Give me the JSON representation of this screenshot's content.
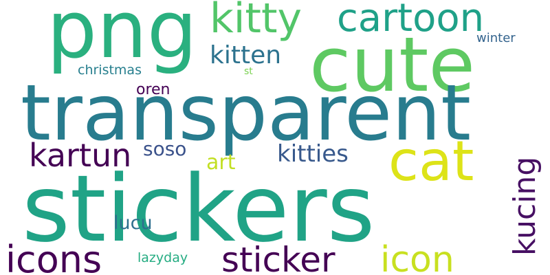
{
  "words": [
    {
      "text": "png",
      "color": "#2ab07f"
    },
    {
      "text": "kitty",
      "color": "#52c569"
    },
    {
      "text": "cartoon",
      "color": "#1fa188"
    },
    {
      "text": "cute",
      "color": "#5ec962"
    },
    {
      "text": "transparent",
      "color": "#287c8e"
    },
    {
      "text": "kitten",
      "color": "#2c728e"
    },
    {
      "text": "winter",
      "color": "#33638d"
    },
    {
      "text": "christmas",
      "color": "#277f8e"
    },
    {
      "text": "st",
      "color": "#7ad151"
    },
    {
      "text": "oren",
      "color": "#440154"
    },
    {
      "text": "kartun",
      "color": "#440154"
    },
    {
      "text": "soso",
      "color": "#3b528b"
    },
    {
      "text": "art",
      "color": "#c2df23"
    },
    {
      "text": "kitties",
      "color": "#38598c"
    },
    {
      "text": "cat",
      "color": "#dde318"
    },
    {
      "text": "kucing",
      "color": "#471063"
    },
    {
      "text": "stickers",
      "color": "#20a386"
    },
    {
      "text": "lucu",
      "color": "#2e6f8e"
    },
    {
      "text": "icons",
      "color": "#440154"
    },
    {
      "text": "sticker",
      "color": "#440154"
    },
    {
      "text": "icon",
      "color": "#c8e020"
    },
    {
      "text": "lazyday",
      "color": "#25ac82"
    }
  ]
}
